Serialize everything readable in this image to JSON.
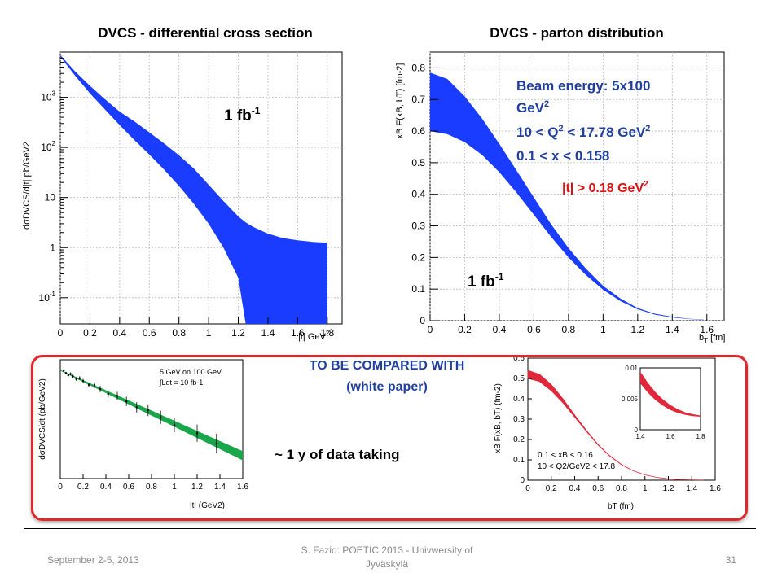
{
  "slide": {
    "compare_line1": "TO BE COMPARED WITH",
    "compare_line2": "(white paper)",
    "data_taking": "~ 1 y of data taking",
    "footer_left": "September 2-5, 2013",
    "footer_center_line1": "S. Fazio: POETIC 2013 - Univwersity of",
    "footer_center_line2": "Jyväskylä",
    "footer_right": "31",
    "accent_blue": "#1a3cff",
    "accent_red": "#e0282c"
  },
  "chart_data": [
    {
      "type": "area",
      "title": "DVCS - differential cross section",
      "xlabel": "|t| GeV",
      "xlabel_sup": "2",
      "ylabel": "dσDVCS/d|t| pb/GeV2",
      "ylog": true,
      "xlim": [
        0,
        1.9
      ],
      "ylim": [
        0.03,
        8000
      ],
      "xticks": [
        "0",
        "0.2",
        "0.4",
        "0.6",
        "0.8",
        "1",
        "1.2",
        "1.4",
        "1.6",
        "1.8"
      ],
      "yticks": [
        {
          "v": 0.1,
          "base": "10",
          "sup": "-1"
        },
        {
          "v": 1,
          "base": "1",
          "sup": ""
        },
        {
          "v": 10,
          "base": "10",
          "sup": ""
        },
        {
          "v": 100,
          "base": "10",
          "sup": "2"
        },
        {
          "v": 1000,
          "base": "10",
          "sup": "3"
        }
      ],
      "grid": true,
      "lumi_base": "1 fb",
      "lumi_sup": "-1",
      "band": {
        "color": "#1a3cff",
        "x": [
          0.0,
          0.1,
          0.2,
          0.3,
          0.4,
          0.5,
          0.6,
          0.7,
          0.8,
          0.9,
          1.0,
          1.1,
          1.2,
          1.25,
          1.3,
          1.4,
          1.5,
          1.6,
          1.7,
          1.8
        ],
        "upper": [
          7000,
          3300,
          1700,
          920,
          520,
          330,
          200,
          120,
          70,
          38,
          18,
          8.5,
          4.2,
          3.2,
          2.6,
          1.9,
          1.55,
          1.4,
          1.3,
          1.25
        ],
        "lower": [
          6500,
          2700,
          1200,
          580,
          280,
          140,
          72,
          36,
          17,
          7.5,
          3,
          1,
          0.25,
          0.03,
          0.03,
          0.03,
          0.03,
          0.03,
          0.03,
          0.03
        ]
      }
    },
    {
      "type": "area",
      "title": "DVCS - parton distribution",
      "xlabel": "b",
      "xlabel_sub": "T",
      "xlabel_suffix": " [fm]",
      "ylabel": "xB F(xB, bT) [fm-2]",
      "xlim": [
        0,
        1.7
      ],
      "ylim": [
        0,
        0.85
      ],
      "xticks": [
        "0",
        "0.2",
        "0.4",
        "0.6",
        "0.8",
        "1",
        "1.2",
        "1.4",
        "1.6"
      ],
      "yticks": [
        "0",
        "0.1",
        "0.2",
        "0.3",
        "0.4",
        "0.5",
        "0.6",
        "0.7",
        "0.8"
      ],
      "grid": true,
      "annotation_lines": [
        {
          "base": "Beam energy: 5x100",
          "sup": ""
        },
        {
          "base": "GeV",
          "sup": "2"
        },
        {
          "base": "10 < Q",
          "sup": "2",
          "rest": " < 17.78 GeV",
          "sup2": "2"
        },
        {
          "base": "0.1 < x < 0.158",
          "sup": ""
        }
      ],
      "t_cut_base": "|t| > 0.18 GeV",
      "t_cut_sup": "2",
      "lumi_base": "1 fb",
      "lumi_sup": "-1",
      "band": {
        "color": "#1a3cff",
        "x": [
          0.0,
          0.1,
          0.2,
          0.3,
          0.4,
          0.5,
          0.6,
          0.7,
          0.8,
          0.9,
          1.0,
          1.1,
          1.2,
          1.3,
          1.4,
          1.5,
          1.58
        ],
        "upper": [
          0.785,
          0.765,
          0.71,
          0.64,
          0.56,
          0.475,
          0.39,
          0.305,
          0.23,
          0.165,
          0.11,
          0.07,
          0.04,
          0.022,
          0.012,
          0.006,
          0.004
        ],
        "lower": [
          0.6,
          0.59,
          0.565,
          0.525,
          0.47,
          0.405,
          0.335,
          0.265,
          0.2,
          0.145,
          0.098,
          0.062,
          0.036,
          0.019,
          0.01,
          0.005,
          0.003
        ]
      }
    },
    {
      "type": "line",
      "title": "",
      "legend_lines": [
        "5 GeV on 100 GeV",
        "∫Ldt = 10 fb-1"
      ],
      "xlabel": "|t| (GeV2)",
      "ylabel": "dσDVCS/dt (pb/GeV2)",
      "xlim": [
        0,
        1.6
      ],
      "ylog": true,
      "xticks": [
        "0",
        "0.2",
        "0.4",
        "0.6",
        "0.8",
        "1",
        "1.2",
        "1.4",
        "1.6"
      ],
      "fit_color": "#1aa64a",
      "points_x": [
        0.03,
        0.05,
        0.07,
        0.09,
        0.11,
        0.14,
        0.17,
        0.2,
        0.25,
        0.3,
        0.35,
        0.42,
        0.5,
        0.58,
        0.67,
        0.77,
        0.88,
        1.0,
        1.2,
        1.37
      ]
    },
    {
      "type": "area",
      "title": "",
      "xlabel": "bT (fm)",
      "ylabel": "xB F(xB, bT) (fm-2)",
      "xlim": [
        0,
        1.6
      ],
      "ylim": [
        0,
        0.6
      ],
      "xticks": [
        "0",
        "0.2",
        "0.4",
        "0.6",
        "0.8",
        "1",
        "1.2",
        "1.4",
        "1.6"
      ],
      "yticks": [
        "0",
        "0.1",
        "0.2",
        "0.3",
        "0.4",
        "0.5",
        "0.6"
      ],
      "legend_lines": [
        "0.1 < xB < 0.16",
        "10 < Q2/GeV2 < 17.8"
      ],
      "band_color": "#e0283a",
      "band": {
        "x": [
          0.0,
          0.1,
          0.2,
          0.3,
          0.4,
          0.5,
          0.6,
          0.7,
          0.8,
          0.9,
          1.0,
          1.1,
          1.2,
          1.3,
          1.4,
          1.5
        ],
        "upper": [
          0.54,
          0.52,
          0.47,
          0.4,
          0.32,
          0.245,
          0.175,
          0.12,
          0.077,
          0.046,
          0.026,
          0.014,
          0.007,
          0.003,
          0.0015,
          0.0008
        ],
        "lower": [
          0.5,
          0.485,
          0.44,
          0.38,
          0.31,
          0.24,
          0.172,
          0.118,
          0.076,
          0.046,
          0.026,
          0.014,
          0.007,
          0.003,
          0.0015,
          0.0008
        ]
      },
      "inset": {
        "xlim": [
          1.4,
          1.8
        ],
        "ylim": [
          0,
          0.01
        ],
        "xticks": [
          "1.4",
          "1.6",
          "1.8"
        ],
        "yticks": [
          "0",
          "0.005",
          "0.01"
        ],
        "x": [
          1.4,
          1.45,
          1.5,
          1.55,
          1.6,
          1.65,
          1.7,
          1.75,
          1.8
        ],
        "upper": [
          0.0094,
          0.0076,
          0.0061,
          0.0049,
          0.004,
          0.0033,
          0.0028,
          0.0025,
          0.0023
        ],
        "lower": [
          0.0075,
          0.006,
          0.0048,
          0.0039,
          0.0032,
          0.0027,
          0.0024,
          0.0022,
          0.0021
        ]
      }
    }
  ]
}
